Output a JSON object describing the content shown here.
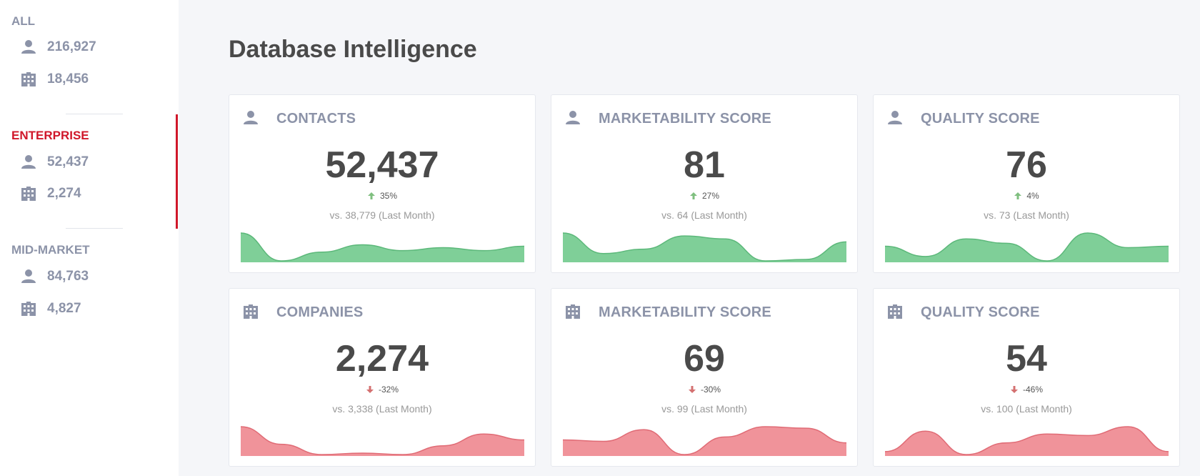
{
  "page_title": "Database Intelligence",
  "sidebar": {
    "segments": [
      {
        "title": "ALL",
        "contacts": "216,927",
        "companies": "18,456",
        "active": false
      },
      {
        "title": "ENTERPRISE",
        "contacts": "52,437",
        "companies": "2,274",
        "active": true
      },
      {
        "title": "MID-MARKET",
        "contacts": "84,763",
        "companies": "4,827",
        "active": false
      }
    ]
  },
  "colors": {
    "accent": "#d0172a",
    "positive": "#7fcf98",
    "positive_stroke": "#5cb87a",
    "negative": "#f0939a",
    "negative_stroke": "#e06b75",
    "up_arrow": "#7fbf7f",
    "down_arrow": "#d47070"
  },
  "cards": [
    {
      "icon": "person-icon",
      "title": "CONTACTS",
      "value": "52,437",
      "change": "35%",
      "direction": "up",
      "compare": "vs. 38,779 (Last Month)",
      "trend": "positive",
      "sparkline": [
        0.95,
        0.0,
        0.3,
        0.55,
        0.35,
        0.45,
        0.35,
        0.5
      ]
    },
    {
      "icon": "person-icon",
      "title": "MARKETABILITY SCORE",
      "value": "81",
      "change": "27%",
      "direction": "up",
      "compare": "vs. 64 (Last Month)",
      "trend": "positive",
      "sparkline": [
        0.95,
        0.25,
        0.4,
        0.85,
        0.75,
        0.0,
        0.05,
        0.65
      ]
    },
    {
      "icon": "person-icon",
      "title": "QUALITY SCORE",
      "value": "76",
      "change": "4%",
      "direction": "up",
      "compare": "vs. 73 (Last Month)",
      "trend": "positive",
      "sparkline": [
        0.5,
        0.15,
        0.75,
        0.6,
        0.0,
        0.95,
        0.45,
        0.5
      ]
    },
    {
      "icon": "building-icon",
      "title": "COMPANIES",
      "value": "2,274",
      "change": "-32%",
      "direction": "down",
      "compare": "vs. 3,338 (Last Month)",
      "trend": "negative",
      "sparkline": [
        0.95,
        0.35,
        0.0,
        0.05,
        0.0,
        0.3,
        0.7,
        0.5
      ]
    },
    {
      "icon": "building-icon",
      "title": "MARKETABILITY SCORE",
      "value": "69",
      "change": "-30%",
      "direction": "down",
      "compare": "vs. 99 (Last Month)",
      "trend": "negative",
      "sparkline": [
        0.5,
        0.45,
        0.85,
        0.0,
        0.6,
        0.95,
        0.9,
        0.4
      ]
    },
    {
      "icon": "building-icon",
      "title": "QUALITY SCORE",
      "value": "54",
      "change": "-46%",
      "direction": "down",
      "compare": "vs. 100 (Last Month)",
      "trend": "negative",
      "sparkline": [
        0.1,
        0.8,
        0.0,
        0.4,
        0.7,
        0.65,
        0.95,
        0.1
      ]
    }
  ]
}
